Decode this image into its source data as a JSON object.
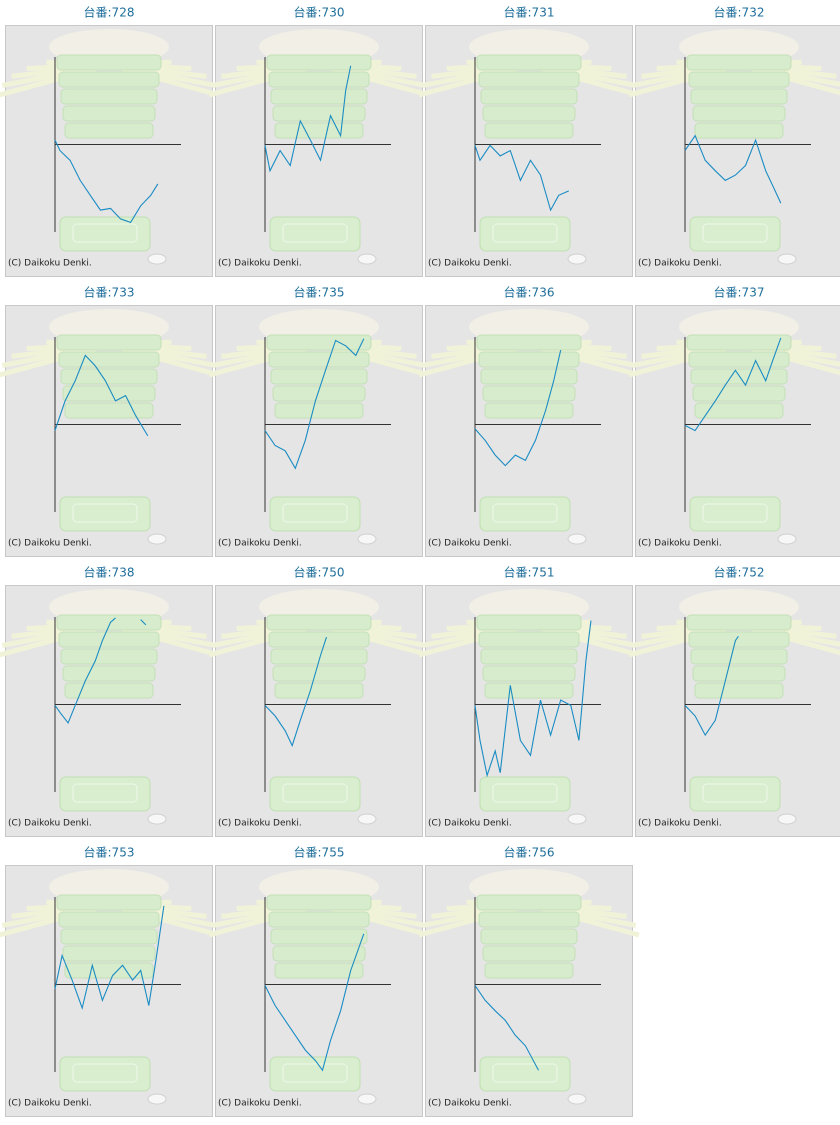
{
  "chart_data": [
    {
      "type": "line",
      "title": "台番:728",
      "credit": "(C) Daikoku Denki.",
      "color": "#1a8cc4",
      "xlim": [
        0,
        120
      ],
      "ylim": [
        -100,
        100
      ],
      "x": [
        0,
        5,
        15,
        25,
        35,
        45,
        55,
        65,
        75,
        85,
        95,
        102
      ],
      "values": [
        5,
        -7,
        -18,
        -41,
        -58,
        -75,
        -73,
        -85,
        -89,
        -70,
        -58,
        -45
      ]
    },
    {
      "type": "line",
      "title": "台番:730",
      "credit": "(C) Daikoku Denki.",
      "color": "#1a8cc4",
      "xlim": [
        0,
        120
      ],
      "ylim": [
        -100,
        100
      ],
      "x": [
        0,
        5,
        15,
        25,
        35,
        45,
        55,
        65,
        75,
        80,
        85
      ],
      "values": [
        -1,
        -30,
        -7,
        -24,
        27,
        5,
        -18,
        33,
        10,
        62,
        90
      ]
    },
    {
      "type": "line",
      "title": "台番:731",
      "credit": "(C) Daikoku Denki.",
      "color": "#1a8cc4",
      "xlim": [
        0,
        120
      ],
      "ylim": [
        -100,
        100
      ],
      "x": [
        0,
        5,
        15,
        25,
        35,
        45,
        55,
        65,
        75,
        83,
        93
      ],
      "values": [
        -1,
        -18,
        -1,
        -13,
        -7,
        -41,
        -18,
        -35,
        -75,
        -58,
        -53
      ]
    },
    {
      "type": "line",
      "title": "台番:732",
      "credit": "(C) Daikoku Denki.",
      "color": "#1a8cc4",
      "xlim": [
        0,
        120
      ],
      "ylim": [
        -100,
        100
      ],
      "x": [
        0,
        10,
        20,
        30,
        40,
        50,
        60,
        70,
        80,
        87,
        95
      ],
      "values": [
        -7,
        10,
        -18,
        -30,
        -41,
        -35,
        -24,
        5,
        -30,
        -47,
        -67
      ]
    },
    {
      "type": "line",
      "title": "台番:733",
      "credit": "(C) Daikoku Denki.",
      "color": "#1a8cc4",
      "xlim": [
        0,
        120
      ],
      "ylim": [
        -100,
        100
      ],
      "x": [
        0,
        10,
        20,
        30,
        40,
        50,
        60,
        70,
        80,
        92
      ],
      "values": [
        -7,
        27,
        50,
        79,
        67,
        50,
        27,
        33,
        10,
        -13
      ]
    },
    {
      "type": "line",
      "title": "台番:735",
      "credit": "(C) Daikoku Denki.",
      "color": "#1a8cc4",
      "xlim": [
        0,
        120
      ],
      "ylim": [
        -100,
        100
      ],
      "x": [
        0,
        10,
        20,
        30,
        40,
        50,
        60,
        70,
        80,
        90,
        98
      ],
      "values": [
        -7,
        -24,
        -30,
        -50,
        -18,
        27,
        62,
        96,
        90,
        79,
        98
      ]
    },
    {
      "type": "line",
      "title": "台番:736",
      "credit": "(C) Daikoku Denki.",
      "color": "#1a8cc4",
      "xlim": [
        0,
        120
      ],
      "ylim": [
        -100,
        100
      ],
      "x": [
        0,
        10,
        20,
        30,
        40,
        50,
        60,
        70,
        78,
        85
      ],
      "values": [
        -5,
        -18,
        -35,
        -47,
        -35,
        -41,
        -18,
        16,
        50,
        85
      ]
    },
    {
      "type": "line",
      "title": "台番:737",
      "credit": "(C) Daikoku Denki.",
      "color": "#1a8cc4",
      "xlim": [
        0,
        120
      ],
      "ylim": [
        -100,
        100
      ],
      "x": [
        0,
        10,
        20,
        30,
        40,
        50,
        60,
        70,
        80,
        87,
        95
      ],
      "values": [
        -1,
        -7,
        10,
        27,
        45,
        62,
        45,
        73,
        50,
        73,
        99
      ]
    },
    {
      "type": "line",
      "title": "台番:738",
      "credit": "(C) Daikoku Denki.",
      "color": "#1a8cc4",
      "xlim": [
        0,
        120
      ],
      "ylim": [
        -100,
        100
      ],
      "x": [
        0,
        5,
        13,
        20,
        30,
        40,
        47,
        55,
        60,
        70,
        85,
        90
      ],
      "values": [
        -1,
        -9,
        -21,
        -1,
        27,
        50,
        73,
        94,
        99,
        null,
        97,
        91
      ]
    },
    {
      "type": "line",
      "title": "台番:750",
      "credit": "(C) Daikoku Denki.",
      "color": "#1a8cc4",
      "xlim": [
        0,
        120
      ],
      "ylim": [
        -100,
        100
      ],
      "x": [
        0,
        10,
        20,
        27,
        35,
        45,
        55,
        61
      ],
      "values": [
        -1,
        -13,
        -30,
        -47,
        -18,
        16,
        56,
        77
      ]
    },
    {
      "type": "line",
      "title": "台番:751",
      "credit": "(C) Daikoku Denki.",
      "color": "#1a8cc4",
      "xlim": [
        0,
        120
      ],
      "ylim": [
        -100,
        100
      ],
      "x": [
        0,
        5,
        12,
        20,
        25,
        35,
        45,
        55,
        65,
        75,
        85,
        95,
        103,
        110,
        115
      ],
      "values": [
        -1,
        -41,
        -81,
        -53,
        -78,
        22,
        -41,
        -58,
        5,
        -35,
        5,
        -1,
        -41,
        50,
        96
      ]
    },
    {
      "type": "line",
      "title": "台番:752",
      "credit": "(C) Daikoku Denki.",
      "color": "#1a8cc4",
      "xlim": [
        0,
        120
      ],
      "ylim": [
        -100,
        100
      ],
      "x": [
        0,
        10,
        20,
        30,
        40,
        50,
        53
      ],
      "values": [
        -1,
        -13,
        -35,
        -18,
        27,
        73,
        78
      ]
    },
    {
      "type": "line",
      "title": "台番:753",
      "credit": "(C) Daikoku Denki.",
      "color": "#1a8cc4",
      "xlim": [
        0,
        120
      ],
      "ylim": [
        -100,
        100
      ],
      "x": [
        0,
        7,
        17,
        27,
        37,
        47,
        57,
        67,
        77,
        85,
        93,
        100,
        108
      ],
      "values": [
        -5,
        33,
        5,
        -27,
        22,
        -18,
        10,
        22,
        5,
        16,
        -24,
        27,
        90
      ]
    },
    {
      "type": "line",
      "title": "台番:755",
      "credit": "(C) Daikoku Denki.",
      "color": "#1a8cc4",
      "xlim": [
        0,
        120
      ],
      "ylim": [
        -100,
        100
      ],
      "x": [
        0,
        10,
        20,
        30,
        40,
        50,
        57,
        65,
        75,
        85,
        98
      ],
      "values": [
        -1,
        -24,
        -41,
        -58,
        -75,
        -87,
        -98,
        -64,
        -30,
        16,
        58
      ]
    },
    {
      "type": "line",
      "title": "台番:756",
      "credit": "(C) Daikoku Denki.",
      "color": "#1a8cc4",
      "xlim": [
        0,
        120
      ],
      "ylim": [
        -100,
        100
      ],
      "x": [
        0,
        10,
        20,
        30,
        40,
        50,
        63
      ],
      "values": [
        -1,
        -18,
        -30,
        -41,
        -58,
        -70,
        -98
      ]
    }
  ]
}
